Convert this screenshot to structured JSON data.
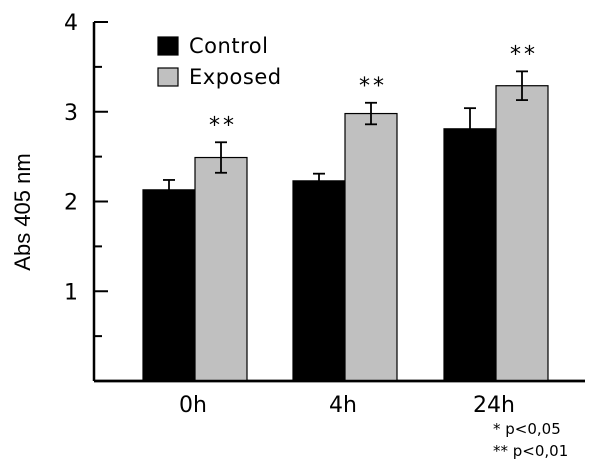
{
  "chart_data": {
    "type": "bar",
    "categories": [
      "0h",
      "4h",
      "24h"
    ],
    "series": [
      {
        "name": "Control",
        "color": "#000000",
        "values": [
          2.13,
          2.23,
          2.81
        ],
        "errors": [
          0.11,
          0.08,
          0.23
        ]
      },
      {
        "name": "Exposed",
        "color": "#c0c0c0",
        "values": [
          2.49,
          2.98,
          3.29
        ],
        "errors": [
          0.17,
          0.12,
          0.16
        ]
      }
    ],
    "significance": [
      {
        "category": "0h",
        "series": "Exposed",
        "mark": "**"
      },
      {
        "category": "4h",
        "series": "Exposed",
        "mark": "**"
      },
      {
        "category": "24h",
        "series": "Exposed",
        "mark": "**"
      }
    ],
    "ylabel": "Abs 405 nm",
    "xlabel": "",
    "ylim": [
      0,
      4
    ],
    "yticks": [
      1,
      2,
      3,
      4
    ],
    "legend_position": "top-left",
    "grid": false,
    "footnotes": [
      "* p<0,05",
      "** p<0,01"
    ]
  }
}
